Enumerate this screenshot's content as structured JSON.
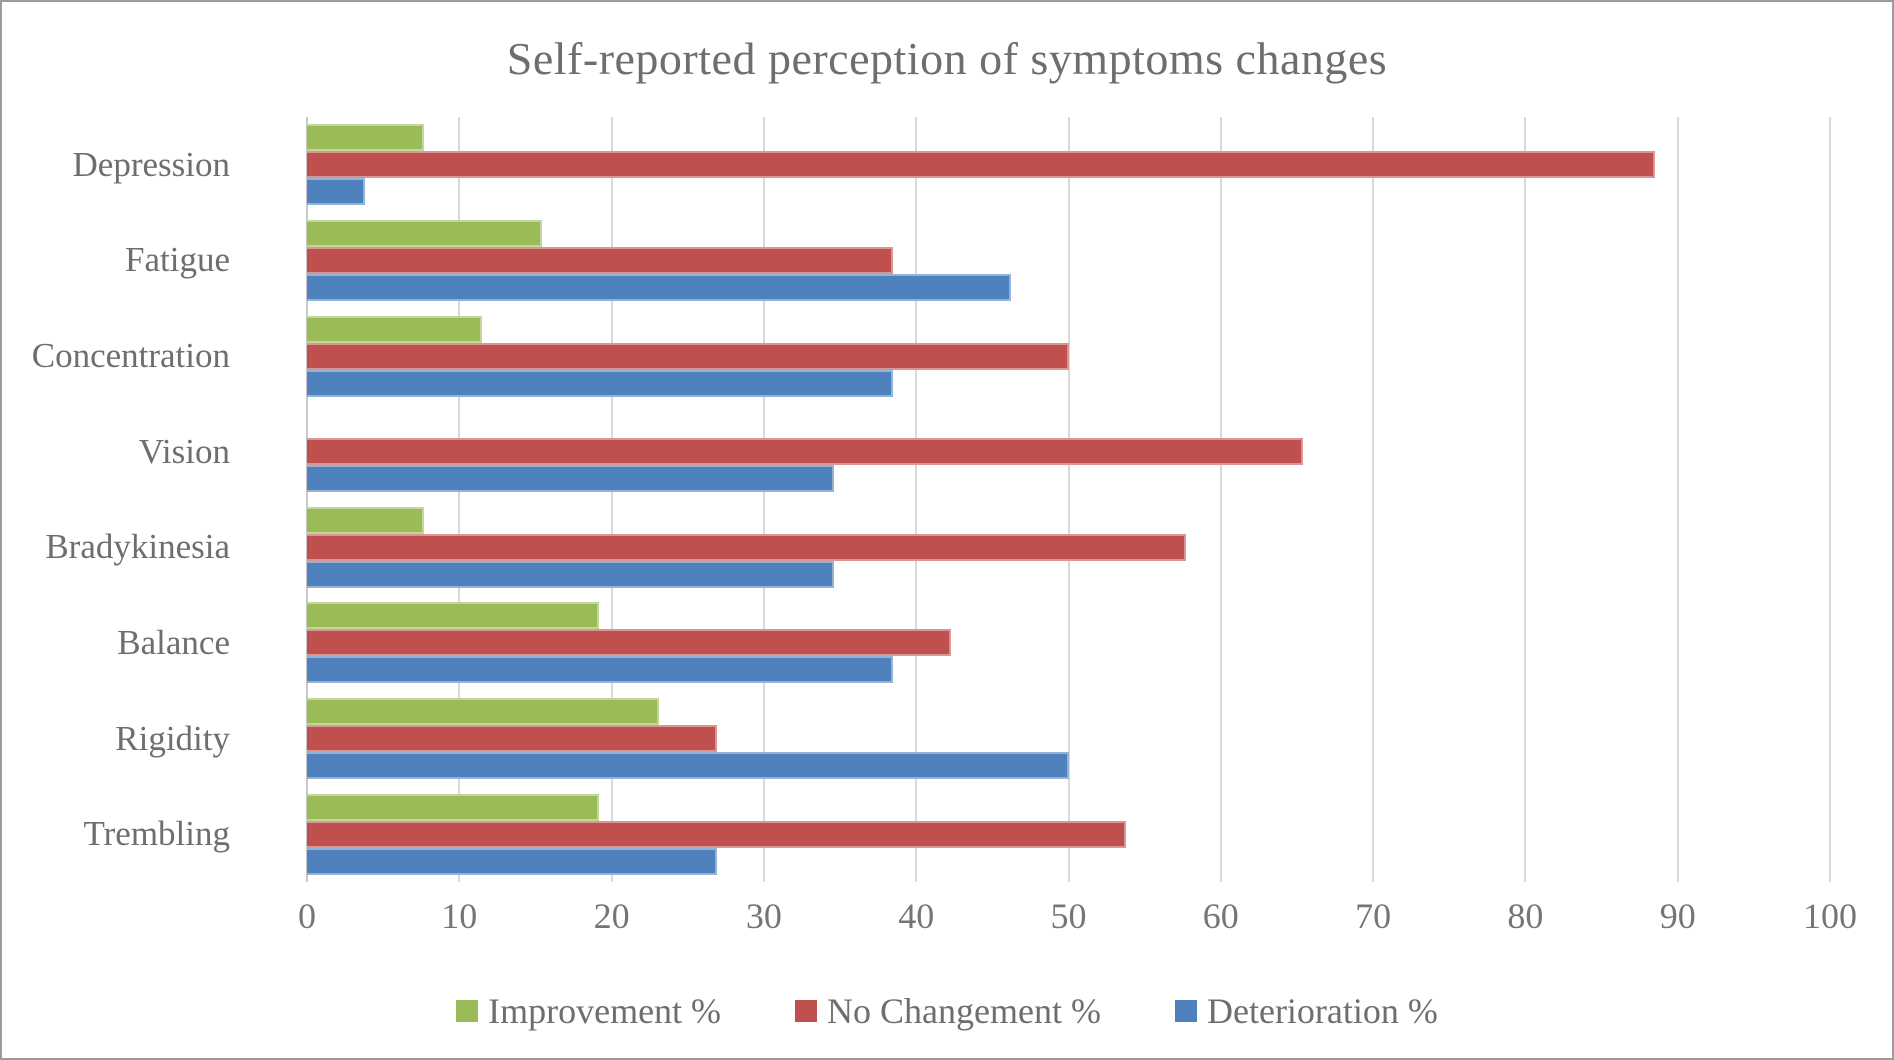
{
  "title": "Self-reported perception of symptoms changes",
  "colors": {
    "text": "#6e6e6e",
    "gridline": "#d9d9d9",
    "border": "#9b9b9b",
    "improvement_green": "#9BBB59",
    "no_change_red": "#C0504D",
    "deterioration_blue": "#4F81BD"
  },
  "chart_data": {
    "type": "bar",
    "orientation": "horizontal",
    "title": "Self-reported perception of symptoms changes",
    "categories": [
      "Depression",
      "Fatigue",
      "Concentration",
      "Vision",
      "Bradykinesia",
      "Balance",
      "Rigidity",
      "Trembling"
    ],
    "series": [
      {
        "name": "Improvement %",
        "color": "#9BBB59",
        "border_color": "#c3d69b",
        "values": [
          7.7,
          15.4,
          11.5,
          0,
          7.7,
          19.2,
          23.1,
          19.2
        ]
      },
      {
        "name": "No Changement %",
        "color": "#C0504D",
        "border_color": "#d99694",
        "values": [
          88.5,
          38.5,
          50,
          65.4,
          57.7,
          42.3,
          26.9,
          53.8
        ]
      },
      {
        "name": "Deterioration %",
        "color": "#4F81BD",
        "border_color": "#95b3d7",
        "values": [
          3.8,
          46.2,
          38.5,
          34.6,
          34.6,
          38.5,
          50,
          26.9
        ]
      }
    ],
    "xlim": [
      0,
      100
    ],
    "x_ticks": [
      0,
      10,
      20,
      30,
      40,
      50,
      60,
      70,
      80,
      90,
      100
    ],
    "grid": true,
    "legend_position": "bottom",
    "xlabel": "",
    "ylabel": ""
  }
}
